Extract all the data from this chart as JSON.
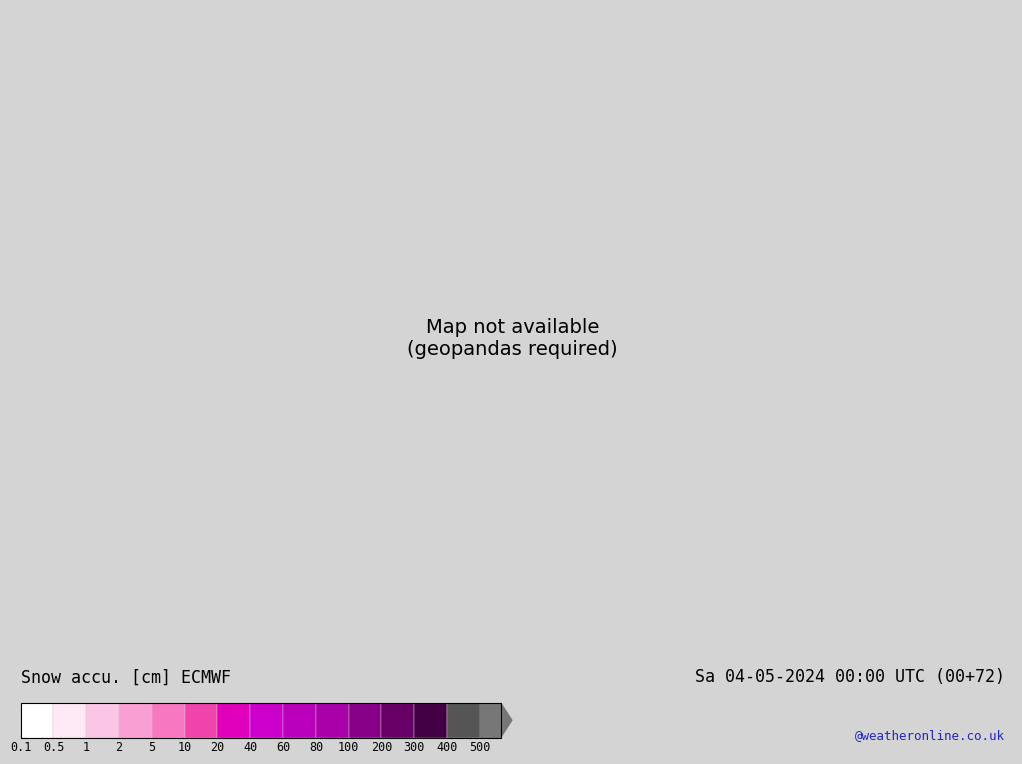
{
  "title_left": "Snow accu. [cm] ECMWF",
  "title_right": "Sa 04-05-2024 00:00 UTC (00+72)",
  "credit": "@weatheronline.co.uk",
  "colorbar_tick_labels": [
    "0.1",
    "0.5",
    "1",
    "2",
    "5",
    "10",
    "20",
    "40",
    "60",
    "80",
    "100",
    "200",
    "300",
    "400",
    "500"
  ],
  "colorbar_colors": [
    "#ffffff",
    "#fde8f5",
    "#fbc5e5",
    "#f99fd3",
    "#f777c0",
    "#f044aa",
    "#e000bb",
    "#cc00cc",
    "#bb00bb",
    "#aa00aa",
    "#880088",
    "#660066",
    "#440044",
    "#555555",
    "#777777"
  ],
  "background_color": "#d4d4d4",
  "ocean_color": "#c8dff0",
  "land_color": "#f0f0f0",
  "border_color": "#999999",
  "fig_width": 10.0,
  "fig_height": 7.33,
  "snow_colors": {
    "light1": "#fde8f5",
    "light2": "#f9c0e0",
    "light3": "#f599cc",
    "medium1": "#ee44bb",
    "medium2": "#dd00cc",
    "medium3": "#cc00cc",
    "dark1": "#aa00aa",
    "dark2": "#880088",
    "darkest": "#440044",
    "gray1": "#555555",
    "green_light": "#ccee99",
    "green_medium": "#aedd77"
  }
}
